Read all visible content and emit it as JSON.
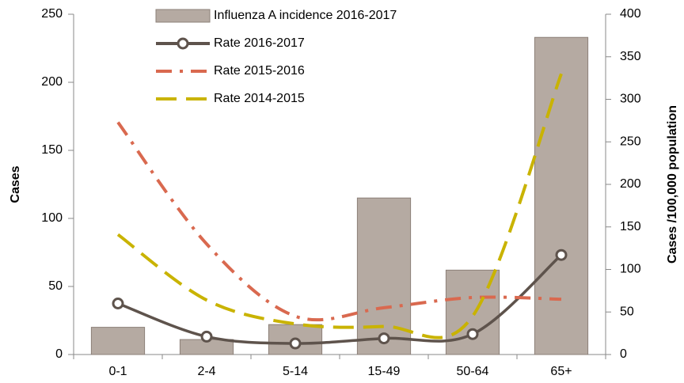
{
  "chart_data": {
    "type": "bar",
    "categories": [
      "0-1",
      "2-4",
      "5-14",
      "15-49",
      "50-64",
      "65+"
    ],
    "y_label": "Cases",
    "y2_label": "Cases /100,000 population",
    "ylim": [
      0,
      250
    ],
    "yticks": [
      0,
      50,
      100,
      150,
      200,
      250
    ],
    "y2lim": [
      0,
      400
    ],
    "y2ticks": [
      0,
      50,
      100,
      150,
      200,
      250,
      300,
      350,
      400
    ],
    "series": [
      {
        "name": "Influenza A incidence 2016-2017",
        "type": "bar",
        "color": "#b5aaa2",
        "values": [
          20,
          11,
          22,
          115,
          62,
          233
        ]
      },
      {
        "name": "Rate 2016-2017",
        "type": "line",
        "axis": "y2",
        "color": "#5e534c",
        "style": "solid",
        "markers": true,
        "values": [
          60,
          21,
          13,
          19,
          24,
          117
        ]
      },
      {
        "name": "Rate 2015-2016",
        "type": "line",
        "axis": "y2",
        "color": "#d9694f",
        "style": "dash-dot",
        "values": [
          273,
          130,
          45,
          55,
          67,
          65
        ]
      },
      {
        "name": "Rate 2014-2015",
        "type": "line",
        "axis": "y2",
        "color": "#c9b300",
        "style": "dash",
        "values": [
          141,
          64,
          36,
          33,
          45,
          330
        ]
      }
    ]
  }
}
